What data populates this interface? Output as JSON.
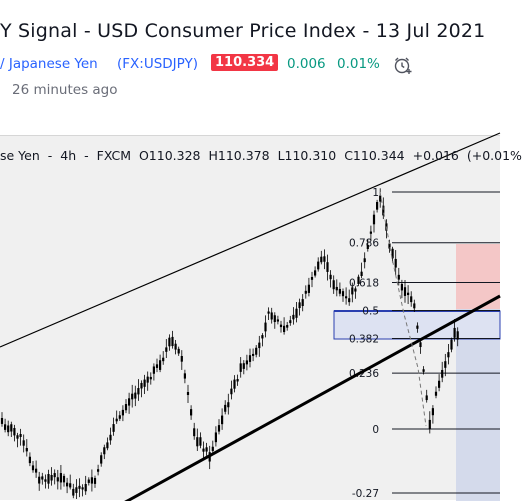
{
  "idea": {
    "title": "Y Signal - USD Consumer Price Index - 13 Jul 2021",
    "posted": "26 minutes ago"
  },
  "symbol": {
    "name": "/ Japanese Yen",
    "ticker": "(FX:USDJPY)",
    "price": "110.334",
    "change": "0.006",
    "change_pct": "0.01%",
    "price_badge_color": "#f23645",
    "change_color": "#089981"
  },
  "legend": {
    "symbol": "se Yen",
    "interval": "4h",
    "source": "FXCM",
    "open": "O110.328",
    "high": "H110.378",
    "low": "L110.310",
    "close": "C110.344",
    "change": "+0.016",
    "change_pct": "(+0.01%"
  },
  "fib_levels": [
    "1",
    "0.786",
    "0.618",
    "0.5",
    "0.382",
    "0.236",
    "0",
    "-0.27"
  ],
  "colors": {
    "candle": "#000000",
    "fib_line": "#131722",
    "zone_fill": "#dde2f2",
    "zone_border": "#2a3fb0",
    "short_stop": "#f5b9b9",
    "short_target": "#cfd6ea",
    "chart_bg": "#f0f0f0"
  },
  "icons": {
    "alarm": "alarm-clock-plus-icon"
  }
}
